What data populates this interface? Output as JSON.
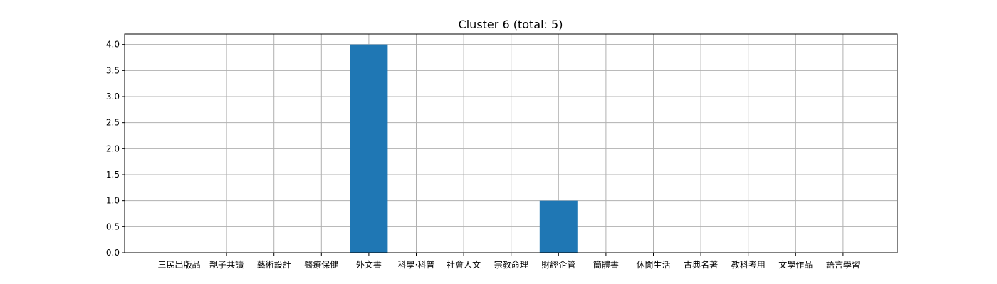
{
  "chart_data": {
    "type": "bar",
    "title": "Cluster 6 (total: 5)",
    "xlabel": "",
    "ylabel": "",
    "categories": [
      "三民出版品",
      "親子共讀",
      "藝術設計",
      "醫療保健",
      "外文書",
      "科學·科普",
      "社會人文",
      "宗教命理",
      "財經企管",
      "簡體書",
      "休閒生活",
      "古典名著",
      "教科考用",
      "文學作品",
      "語言學習"
    ],
    "values": [
      0,
      0,
      0,
      0,
      4,
      0,
      0,
      0,
      1,
      0,
      0,
      0,
      0,
      0,
      0
    ],
    "ylim": [
      0,
      4.2
    ],
    "yticks": [
      "0.0",
      "0.5",
      "1.0",
      "1.5",
      "2.0",
      "2.5",
      "3.0",
      "3.5",
      "4.0"
    ],
    "grid": true,
    "legend": "none",
    "bar_color": "#1f77b4",
    "grid_color": "#b0b0b0"
  }
}
